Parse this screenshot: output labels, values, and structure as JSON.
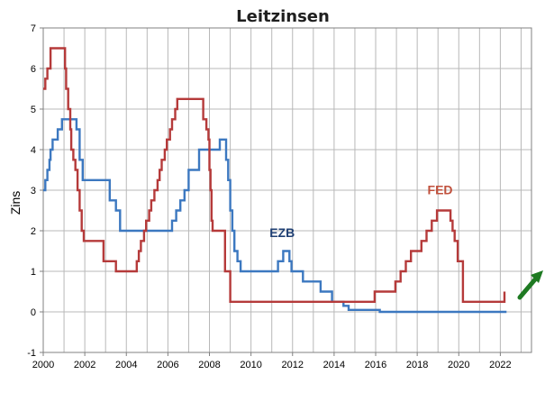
{
  "chart_data": {
    "type": "line",
    "title": "Leitzinsen",
    "xlabel": "",
    "ylabel": "Zins",
    "xlim": [
      2000,
      2023.5
    ],
    "ylim": [
      -1,
      7
    ],
    "x_ticks": [
      "2000",
      "2002",
      "2004",
      "2006",
      "2008",
      "2010",
      "2012",
      "2014",
      "2016",
      "2018",
      "2020",
      "2022"
    ],
    "y_ticks": [
      "-1",
      "0",
      "1",
      "2",
      "3",
      "4",
      "5",
      "6",
      "7"
    ],
    "grid": true,
    "legend": "none",
    "step": true,
    "series": [
      {
        "name": "EZB",
        "color": "#3c78c0",
        "x": [
          2000.0,
          2000.1,
          2000.2,
          2000.3,
          2000.35,
          2000.45,
          2000.5,
          2000.7,
          2000.9,
          2001.3,
          2001.6,
          2001.75,
          2001.9,
          2002.9,
          2003.2,
          2003.5,
          2003.7,
          2005.9,
          2006.2,
          2006.4,
          2006.6,
          2006.8,
          2007.0,
          2007.5,
          2008.5,
          2008.8,
          2008.9,
          2009.0,
          2009.1,
          2009.2,
          2009.35,
          2009.5,
          2011.3,
          2011.55,
          2011.85,
          2011.95,
          2012.5,
          2013.35,
          2013.9,
          2014.45,
          2014.7,
          2016.2,
          2022.3
        ],
        "values": [
          3.0,
          3.25,
          3.5,
          3.75,
          4.0,
          4.25,
          4.25,
          4.5,
          4.75,
          4.75,
          4.5,
          3.75,
          3.25,
          3.25,
          2.75,
          2.5,
          2.0,
          2.0,
          2.25,
          2.5,
          2.75,
          3.0,
          3.5,
          4.0,
          4.25,
          3.75,
          3.25,
          2.5,
          2.0,
          1.5,
          1.25,
          1.0,
          1.25,
          1.5,
          1.25,
          1.0,
          0.75,
          0.5,
          0.25,
          0.15,
          0.05,
          0.0,
          0.0
        ]
      },
      {
        "name": "FED",
        "color": "#b53a3a",
        "x": [
          2000.0,
          2000.1,
          2000.2,
          2000.35,
          2001.05,
          2001.1,
          2001.2,
          2001.3,
          2001.35,
          2001.45,
          2001.55,
          2001.65,
          2001.75,
          2001.85,
          2001.95,
          2002.9,
          2003.5,
          2004.5,
          2004.6,
          2004.7,
          2004.85,
          2004.95,
          2005.1,
          2005.2,
          2005.35,
          2005.5,
          2005.6,
          2005.7,
          2005.85,
          2005.95,
          2006.1,
          2006.2,
          2006.35,
          2006.45,
          2006.55,
          2007.7,
          2007.85,
          2007.95,
          2008.0,
          2008.05,
          2008.1,
          2008.15,
          2008.3,
          2008.75,
          2009.0,
          2015.95,
          2016.95,
          2017.2,
          2017.45,
          2017.7,
          2018.2,
          2018.45,
          2018.7,
          2018.95,
          2019.6,
          2019.7,
          2019.8,
          2019.95,
          2020.2,
          2020.25,
          2022.2
        ],
        "values": [
          5.5,
          5.75,
          6.0,
          6.5,
          6.0,
          5.5,
          5.0,
          4.5,
          4.0,
          3.75,
          3.5,
          3.0,
          2.5,
          2.0,
          1.75,
          1.25,
          1.0,
          1.25,
          1.5,
          1.75,
          2.0,
          2.25,
          2.5,
          2.75,
          3.0,
          3.25,
          3.5,
          3.75,
          4.0,
          4.25,
          4.5,
          4.75,
          5.0,
          5.25,
          5.25,
          4.75,
          4.5,
          4.25,
          3.5,
          3.0,
          2.25,
          2.0,
          2.0,
          1.0,
          0.25,
          0.5,
          0.75,
          1.0,
          1.25,
          1.5,
          1.75,
          2.0,
          2.25,
          2.5,
          2.25,
          2.0,
          1.75,
          1.25,
          0.25,
          0.25,
          0.5
        ]
      }
    ],
    "annotations": [
      {
        "text": "EZB",
        "x": 2011.5,
        "y": 1.85,
        "color": "#1f3f73"
      },
      {
        "text": "FED",
        "x": 2019.1,
        "y": 2.9,
        "color": "#c0503c"
      }
    ],
    "arrow_color": "#1e7a22"
  }
}
